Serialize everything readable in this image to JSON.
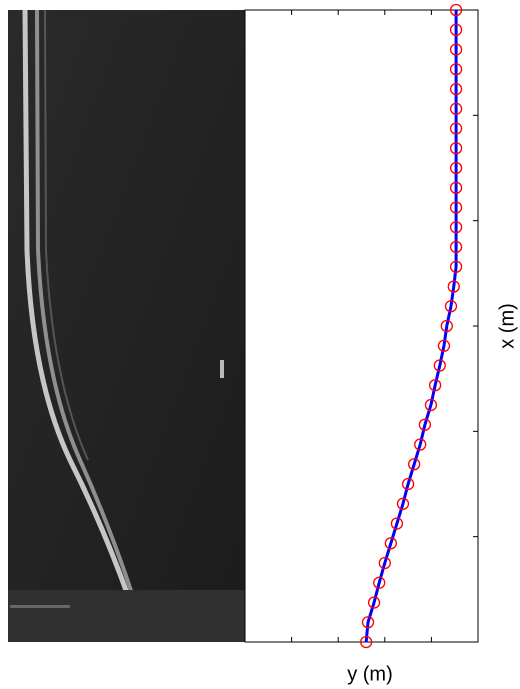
{
  "chart_data": {
    "type": "scatter",
    "x_label": "y (m)",
    "y_label": "x (m)",
    "x": [
      2.6,
      2.64,
      2.77,
      2.88,
      3.0,
      3.13,
      3.26,
      3.39,
      3.5,
      3.63,
      3.76,
      3.86,
      3.99,
      4.08,
      4.18,
      4.27,
      4.33,
      4.42,
      4.48,
      4.53,
      4.53,
      4.53,
      4.53,
      4.53,
      4.53,
      4.53,
      4.53,
      4.53,
      4.53,
      4.53,
      4.53,
      4.53,
      4.53
    ],
    "values": [
      0,
      0.1875,
      0.375,
      0.5625,
      0.75,
      0.9375,
      1.125,
      1.3125,
      1.5,
      1.6875,
      1.875,
      2.0625,
      2.25,
      2.4375,
      2.625,
      2.8125,
      3.0,
      3.1875,
      3.375,
      3.5625,
      3.75,
      3.9375,
      4.125,
      4.3125,
      4.5,
      4.6875,
      4.875,
      5.0625,
      5.25,
      5.4375,
      5.625,
      5.8125,
      6.0
    ],
    "marker_color": "#ff0000",
    "line_color": "#0000ff",
    "xlim": [
      0,
      5
    ],
    "ylim": [
      0,
      6
    ],
    "xticks": [
      1,
      2,
      3,
      4
    ],
    "yticks": [
      1,
      2,
      3,
      4,
      5
    ]
  }
}
